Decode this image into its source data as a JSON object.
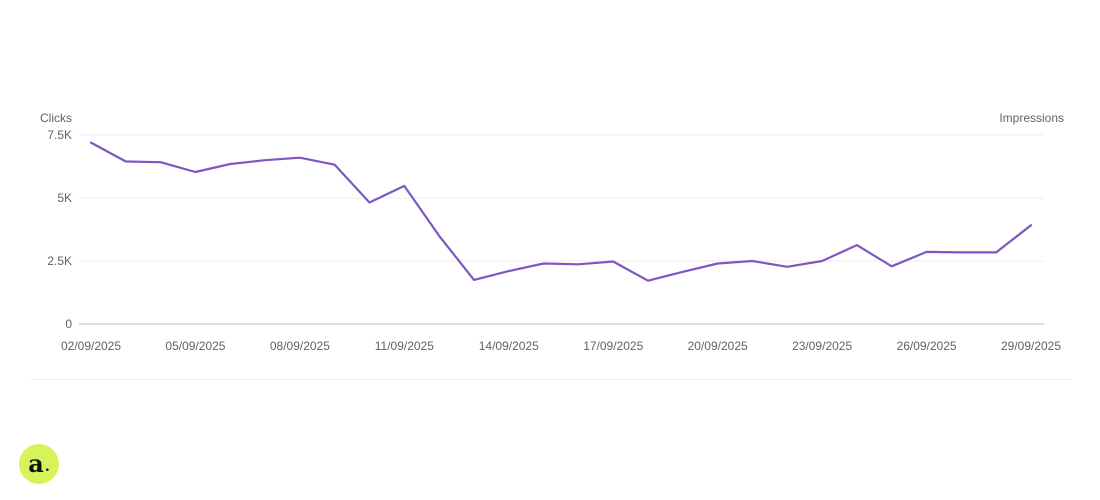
{
  "colors": {
    "line": "#7e57c2",
    "logo_bg": "#d7f35a"
  },
  "logo": {
    "letter": "a",
    "dot": "."
  },
  "chart_data": {
    "type": "line",
    "left_axis_label": "Clicks",
    "right_axis_label": "Impressions",
    "ylim": [
      0,
      7500
    ],
    "yticks": [
      0,
      2500,
      5000,
      7500
    ],
    "ytick_labels": [
      "0",
      "2.5K",
      "5K",
      "7.5K"
    ],
    "grid": true,
    "x": [
      "02/09/2025",
      "03/09/2025",
      "04/09/2025",
      "05/09/2025",
      "06/09/2025",
      "07/09/2025",
      "08/09/2025",
      "09/09/2025",
      "10/09/2025",
      "11/09/2025",
      "12/09/2025",
      "13/09/2025",
      "14/09/2025",
      "15/09/2025",
      "16/09/2025",
      "17/09/2025",
      "18/09/2025",
      "19/09/2025",
      "20/09/2025",
      "21/09/2025",
      "22/09/2025",
      "23/09/2025",
      "24/09/2025",
      "25/09/2025",
      "26/09/2025",
      "27/09/2025",
      "28/09/2025",
      "29/09/2025"
    ],
    "xtick_labels": [
      "02/09/2025",
      "05/09/2025",
      "08/09/2025",
      "11/09/2025",
      "14/09/2025",
      "17/09/2025",
      "20/09/2025",
      "23/09/2025",
      "26/09/2025",
      "29/09/2025"
    ],
    "series": [
      {
        "values": [
          7200,
          6450,
          6420,
          6030,
          6350,
          6500,
          6600,
          6320,
          4820,
          5480,
          3500,
          1750,
          2100,
          2400,
          2370,
          2480,
          1720,
          2070,
          2400,
          2500,
          2270,
          2500,
          3130,
          2290,
          2860,
          2840,
          2840,
          3920
        ]
      }
    ]
  }
}
